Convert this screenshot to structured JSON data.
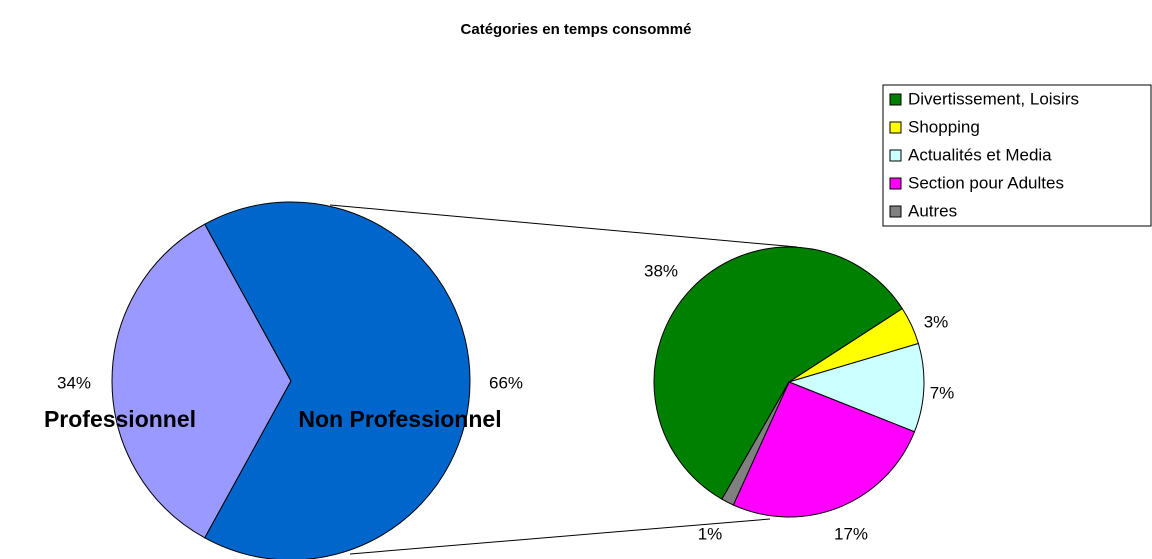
{
  "chart_data": {
    "type": "pie-of-pie",
    "title": "Catégories en temps consommé",
    "categories": [
      "Professionnel",
      "Non Professionnel"
    ],
    "values": [
      34,
      66
    ],
    "value_labels": [
      "34%",
      "66%"
    ],
    "colors": [
      "#9999ff",
      "#0066cc"
    ],
    "breakdown": {
      "categories": [
        "Divertissement, Loisirs",
        "Shopping",
        "Actualités et Media",
        "Section pour Adultes",
        "Autres"
      ],
      "values": [
        38,
        3,
        7,
        17,
        1
      ],
      "value_labels": [
        "38%",
        "3%",
        "7%",
        "17%",
        "1%"
      ],
      "colors": [
        "#008000",
        "#ffff00",
        "#ccffff",
        "#ff00ff",
        "#808080"
      ]
    },
    "legend": "top-right"
  }
}
